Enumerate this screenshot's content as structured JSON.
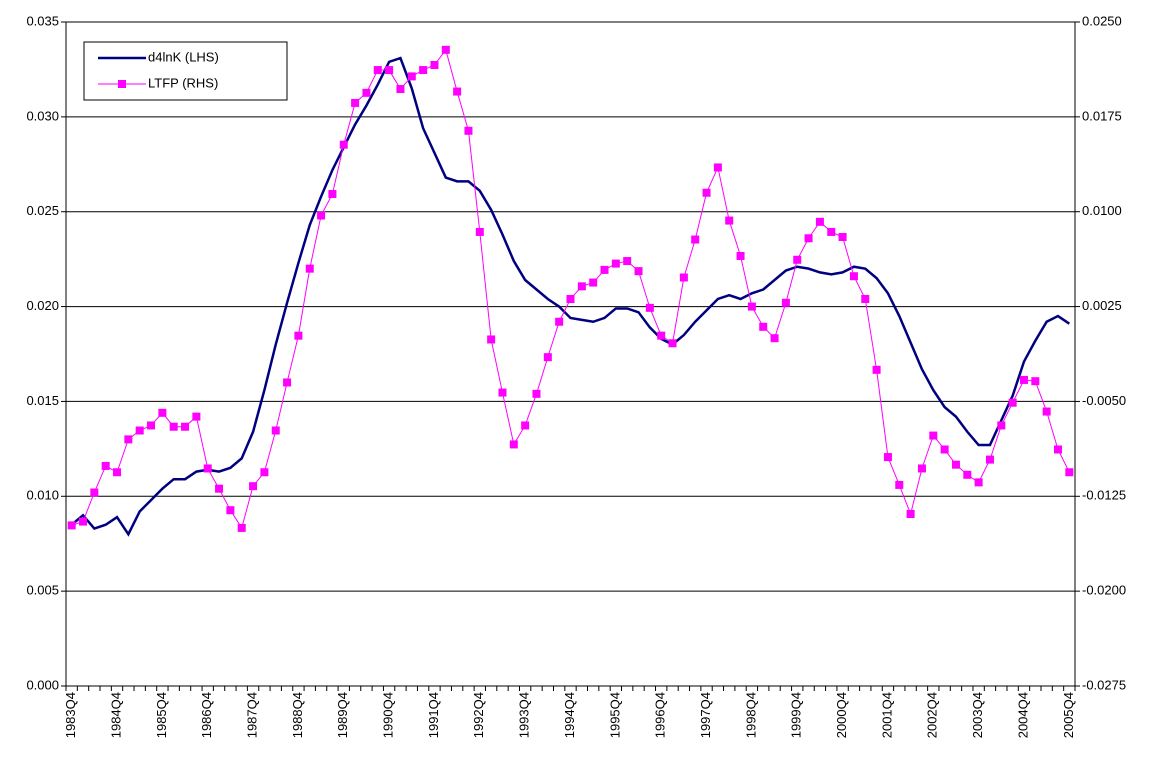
{
  "chart_data": {
    "type": "line",
    "categories": [
      "1983Q4",
      null,
      null,
      null,
      "1984Q4",
      null,
      null,
      null,
      "1985Q4",
      null,
      null,
      null,
      "1986Q4",
      null,
      null,
      null,
      "1987Q4",
      null,
      null,
      null,
      "1988Q4",
      null,
      null,
      null,
      "1989Q4",
      null,
      null,
      null,
      "1990Q4",
      null,
      null,
      null,
      "1991Q4",
      null,
      null,
      null,
      "1992Q4",
      null,
      null,
      null,
      "1993Q4",
      null,
      null,
      null,
      "1994Q4",
      null,
      null,
      null,
      "1995Q4",
      null,
      null,
      null,
      "1996Q4",
      null,
      null,
      null,
      "1997Q4",
      null,
      null,
      null,
      "1998Q4",
      null,
      null,
      null,
      "1999Q4",
      null,
      null,
      null,
      "2000Q4",
      null,
      null,
      null,
      "2001Q4",
      null,
      null,
      null,
      "2002Q4",
      null,
      null,
      null,
      "2003Q4",
      null,
      null,
      null,
      "2004Q4",
      null,
      null,
      null,
      "2005Q4"
    ],
    "series": [
      {
        "name": "d4lnK (LHS)",
        "color": "#000080",
        "marker": "none",
        "values": [
          0.0085,
          0.009,
          0.0083,
          0.0085,
          0.0089,
          0.008,
          0.0092,
          0.0098,
          0.0104,
          0.0109,
          0.0109,
          0.0113,
          0.0114,
          0.0113,
          0.0115,
          0.012,
          0.0134,
          0.0156,
          0.018,
          0.0202,
          0.0223,
          0.0243,
          0.0258,
          0.0272,
          0.0284,
          0.0296,
          0.0306,
          0.0317,
          0.0329,
          0.0331,
          0.0315,
          0.0294,
          0.0281,
          0.0268,
          0.0266,
          0.0266,
          0.0261,
          0.0251,
          0.0238,
          0.0224,
          0.0214,
          0.0209,
          0.0204,
          0.02,
          0.0194,
          0.0193,
          0.0192,
          0.0194,
          0.0199,
          0.0199,
          0.0197,
          0.0189,
          0.0183,
          0.018,
          0.0185,
          0.0192,
          0.0198,
          0.0204,
          0.0206,
          0.0204,
          0.0207,
          0.0209,
          0.0214,
          0.0219,
          0.0221,
          0.022,
          0.0218,
          0.0217,
          0.0218,
          0.0221,
          0.022,
          0.0215,
          0.0207,
          0.0195,
          0.0181,
          0.0167,
          0.0156,
          0.0147,
          0.0142,
          0.0134,
          0.0127,
          0.0127,
          0.014,
          0.0153,
          0.0171,
          0.0182,
          0.0192,
          0.0195,
          0.0191
        ]
      },
      {
        "name": "LTFP (RHS)",
        "color": "#ff00ff",
        "marker": "square",
        "axis": "y2",
        "values": [
          -0.0148,
          -0.0145,
          -0.0122,
          -0.0101,
          -0.0106,
          -0.008,
          -0.0073,
          -0.0069,
          -0.0059,
          -0.007,
          -0.007,
          -0.0062,
          -0.0103,
          -0.0119,
          -0.0136,
          -0.015,
          -0.0117,
          -0.0106,
          -0.0073,
          -0.0035,
          0.0002,
          0.0055,
          0.0097,
          0.0114,
          0.0153,
          0.0186,
          0.0194,
          0.0212,
          0.0212,
          0.0197,
          0.0207,
          0.0212,
          0.0216,
          0.0228,
          0.0195,
          0.0164,
          0.0084,
          -0.0001,
          -0.0043,
          -0.0084,
          -0.0069,
          -0.0044,
          -0.0015,
          0.0013,
          0.0031,
          0.0041,
          0.0044,
          0.0054,
          0.0059,
          0.0061,
          0.0053,
          0.0024,
          0.0002,
          -0.0004,
          0.0048,
          0.0078,
          0.0115,
          0.0135,
          0.0093,
          0.0065,
          0.0025,
          0.0009,
          0.0,
          0.0028,
          0.0062,
          0.0079,
          0.0092,
          0.0084,
          0.008,
          0.0049,
          0.0031,
          -0.0025,
          -0.0094,
          -0.0116,
          -0.0139,
          -0.0103,
          -0.0077,
          -0.0088,
          -0.01,
          -0.0108,
          -0.0114,
          -0.0096,
          -0.0069,
          -0.0051,
          -0.0033,
          -0.0034,
          -0.0058,
          -0.0088,
          -0.0106
        ]
      }
    ],
    "ylim": [
      0,
      0.035
    ],
    "yticks": [
      {
        "value": 0,
        "label": "0.000"
      },
      {
        "value": 0.005,
        "label": "0.005"
      },
      {
        "value": 0.01,
        "label": "0.010"
      },
      {
        "value": 0.015,
        "label": "0.015"
      },
      {
        "value": 0.02,
        "label": "0.020"
      },
      {
        "value": 0.025,
        "label": "0.025"
      },
      {
        "value": 0.03,
        "label": "0.030"
      },
      {
        "value": 0.035,
        "label": "0.035"
      }
    ],
    "y2lim": [
      -0.0275,
      0.025
    ],
    "y2ticks": [
      {
        "value": -0.0275,
        "label": "-0.0275"
      },
      {
        "value": -0.02,
        "label": "-0.0200"
      },
      {
        "value": -0.0125,
        "label": "-0.0125"
      },
      {
        "value": -0.005,
        "label": "-0.0050"
      },
      {
        "value": 0.0025,
        "label": "0.0025"
      },
      {
        "value": 0.01,
        "label": "0.0100"
      },
      {
        "value": 0.0175,
        "label": "0.0175"
      },
      {
        "value": 0.025,
        "label": "0.0250"
      }
    ],
    "grid": true,
    "legend": "top-left"
  }
}
